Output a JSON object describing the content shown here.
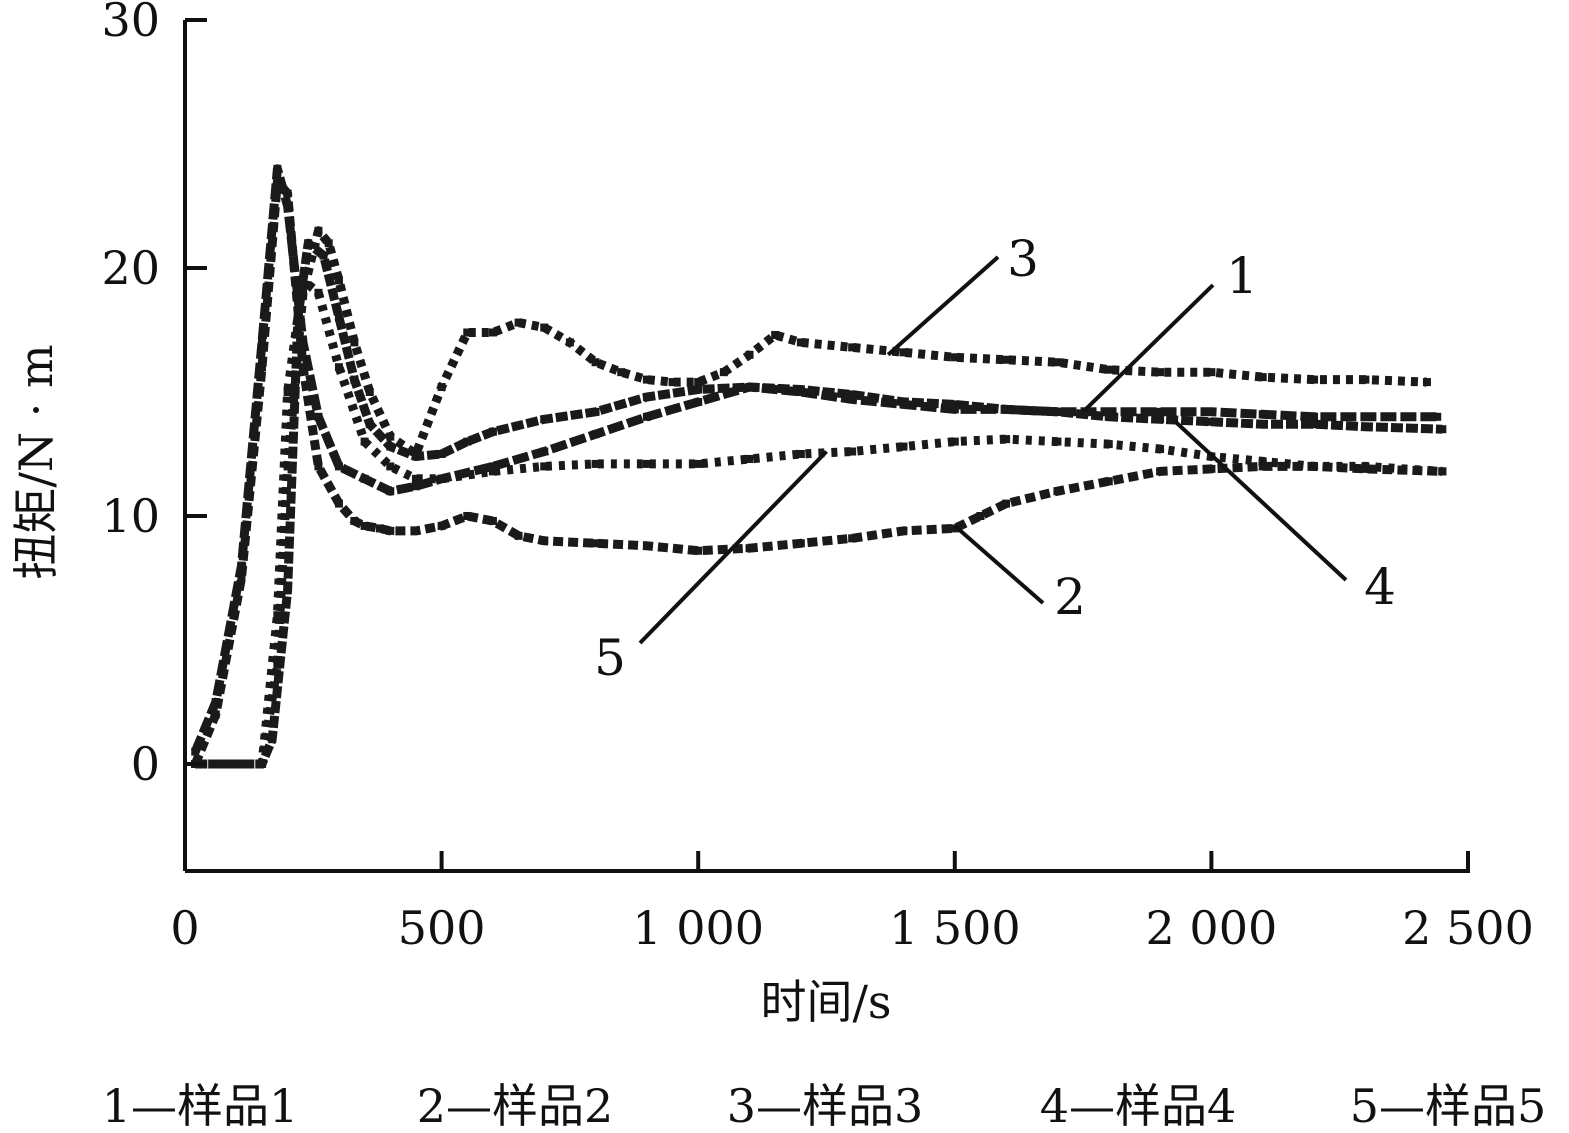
{
  "chart_data": {
    "type": "line",
    "xlabel": "时间/s",
    "ylabel": "扭矩/N · m",
    "xlim": [
      0,
      2500
    ],
    "ylim": [
      -4.5,
      30
    ],
    "x_ticks": [
      {
        "value": 0,
        "label": "0"
      },
      {
        "value": 500,
        "label": "500"
      },
      {
        "value": 1000,
        "label": "1 000"
      },
      {
        "value": 1500,
        "label": "1 500"
      },
      {
        "value": 2000,
        "label": "2 000"
      },
      {
        "value": 2500,
        "label": "2 500"
      }
    ],
    "y_ticks": [
      {
        "value": 0,
        "label": "0"
      },
      {
        "value": 10,
        "label": "10"
      },
      {
        "value": 20,
        "label": "20"
      },
      {
        "value": 30,
        "label": "30"
      }
    ],
    "grid": false,
    "legend_position": "bottom",
    "legend": [
      {
        "key": "1",
        "label": "1—样品1"
      },
      {
        "key": "2",
        "label": "2—样品2"
      },
      {
        "key": "3",
        "label": "3—样品3"
      },
      {
        "key": "4",
        "label": "4—样品4"
      },
      {
        "key": "5",
        "label": "5—样品5"
      }
    ],
    "series": [
      {
        "key": "1",
        "x": [
          20,
          60,
          110,
          150,
          180,
          200,
          230,
          260,
          300,
          350,
          400,
          450,
          500,
          600,
          700,
          800,
          900,
          1000,
          1100,
          1200,
          1300,
          1400,
          1500,
          1600,
          1700,
          1800,
          1900,
          2000,
          2100,
          2200,
          2300,
          2440
        ],
        "y": [
          0.5,
          2.5,
          8,
          17,
          24,
          22.5,
          17,
          14,
          12,
          11.5,
          11,
          11.2,
          11.5,
          12,
          12.6,
          13.3,
          14,
          14.6,
          15.2,
          15,
          14.7,
          14.5,
          14.3,
          14.3,
          14.2,
          14.2,
          14.2,
          14.2,
          14.1,
          14,
          14,
          14
        ]
      },
      {
        "key": "2",
        "x": [
          20,
          60,
          110,
          150,
          180,
          200,
          230,
          260,
          300,
          330,
          350,
          380,
          400,
          450,
          500,
          550,
          600,
          650,
          700,
          800,
          900,
          1000,
          1100,
          1200,
          1300,
          1400,
          1500,
          1550,
          1600,
          1700,
          1800,
          1900,
          2000,
          2100,
          2200,
          2300,
          2450
        ],
        "y": [
          0,
          2,
          7.5,
          16,
          23.5,
          23,
          16,
          12,
          10.5,
          9.8,
          9.6,
          9.5,
          9.4,
          9.4,
          9.6,
          10,
          9.8,
          9.2,
          9,
          8.9,
          8.8,
          8.6,
          8.7,
          8.9,
          9.1,
          9.4,
          9.5,
          10,
          10.5,
          11,
          11.4,
          11.8,
          11.9,
          12,
          12,
          11.9,
          11.8
        ]
      },
      {
        "key": "3",
        "x": [
          20,
          100,
          150,
          180,
          200,
          230,
          260,
          280,
          300,
          330,
          360,
          400,
          450,
          500,
          550,
          600,
          650,
          700,
          750,
          800,
          850,
          900,
          950,
          1000,
          1050,
          1100,
          1150,
          1200,
          1300,
          1400,
          1500,
          1600,
          1700,
          1800,
          1900,
          2000,
          2100,
          2200,
          2300,
          2420
        ],
        "y": [
          0,
          0,
          0,
          4,
          12,
          19,
          21.5,
          21,
          19.5,
          17,
          15,
          13.2,
          12.5,
          15.2,
          17.4,
          17.4,
          17.8,
          17.6,
          17,
          16.2,
          15.8,
          15.5,
          15.4,
          15.4,
          15.8,
          16.5,
          17.3,
          17,
          16.8,
          16.6,
          16.4,
          16.3,
          16.2,
          15.9,
          15.8,
          15.8,
          15.6,
          15.5,
          15.5,
          15.4
        ]
      },
      {
        "key": "4",
        "x": [
          20,
          100,
          150,
          170,
          200,
          220,
          240,
          270,
          300,
          330,
          360,
          400,
          450,
          500,
          550,
          600,
          700,
          800,
          900,
          1000,
          1100,
          1200,
          1300,
          1400,
          1500,
          1600,
          1700,
          1800,
          1900,
          2000,
          2100,
          2200,
          2300,
          2450
        ],
        "y": [
          0,
          0,
          0,
          1,
          7,
          18,
          21,
          20.5,
          18,
          15.5,
          13.7,
          12.8,
          12.4,
          12.5,
          13,
          13.4,
          13.9,
          14.2,
          14.8,
          15.1,
          15.2,
          15.1,
          14.9,
          14.6,
          14.5,
          14.3,
          14.2,
          14,
          13.9,
          13.8,
          13.7,
          13.7,
          13.6,
          13.5
        ]
      },
      {
        "key": "5",
        "x": [
          20,
          100,
          150,
          180,
          200,
          230,
          260,
          300,
          350,
          400,
          450,
          500,
          600,
          700,
          800,
          900,
          1000,
          1100,
          1200,
          1300,
          1400,
          1500,
          1600,
          1700,
          1800,
          1900,
          2000,
          2100,
          2200,
          2300,
          2450
        ],
        "y": [
          0,
          0,
          0,
          6,
          15,
          19.5,
          19,
          16,
          13,
          12,
          11.5,
          11.5,
          11.8,
          12,
          12.1,
          12.1,
          12.1,
          12.3,
          12.5,
          12.6,
          12.8,
          13,
          13.1,
          13,
          12.9,
          12.7,
          12.4,
          12.2,
          12,
          12,
          11.8
        ]
      }
    ],
    "callouts": [
      {
        "label": "1",
        "point": [
          1750,
          14.2
        ]
      },
      {
        "label": "2",
        "point": [
          1500,
          9.6
        ]
      },
      {
        "label": "3",
        "point": [
          1370,
          16.5
        ]
      },
      {
        "label": "4",
        "point": [
          1930,
          13.8
        ]
      },
      {
        "label": "5",
        "point": [
          1250,
          12.6
        ]
      }
    ]
  }
}
